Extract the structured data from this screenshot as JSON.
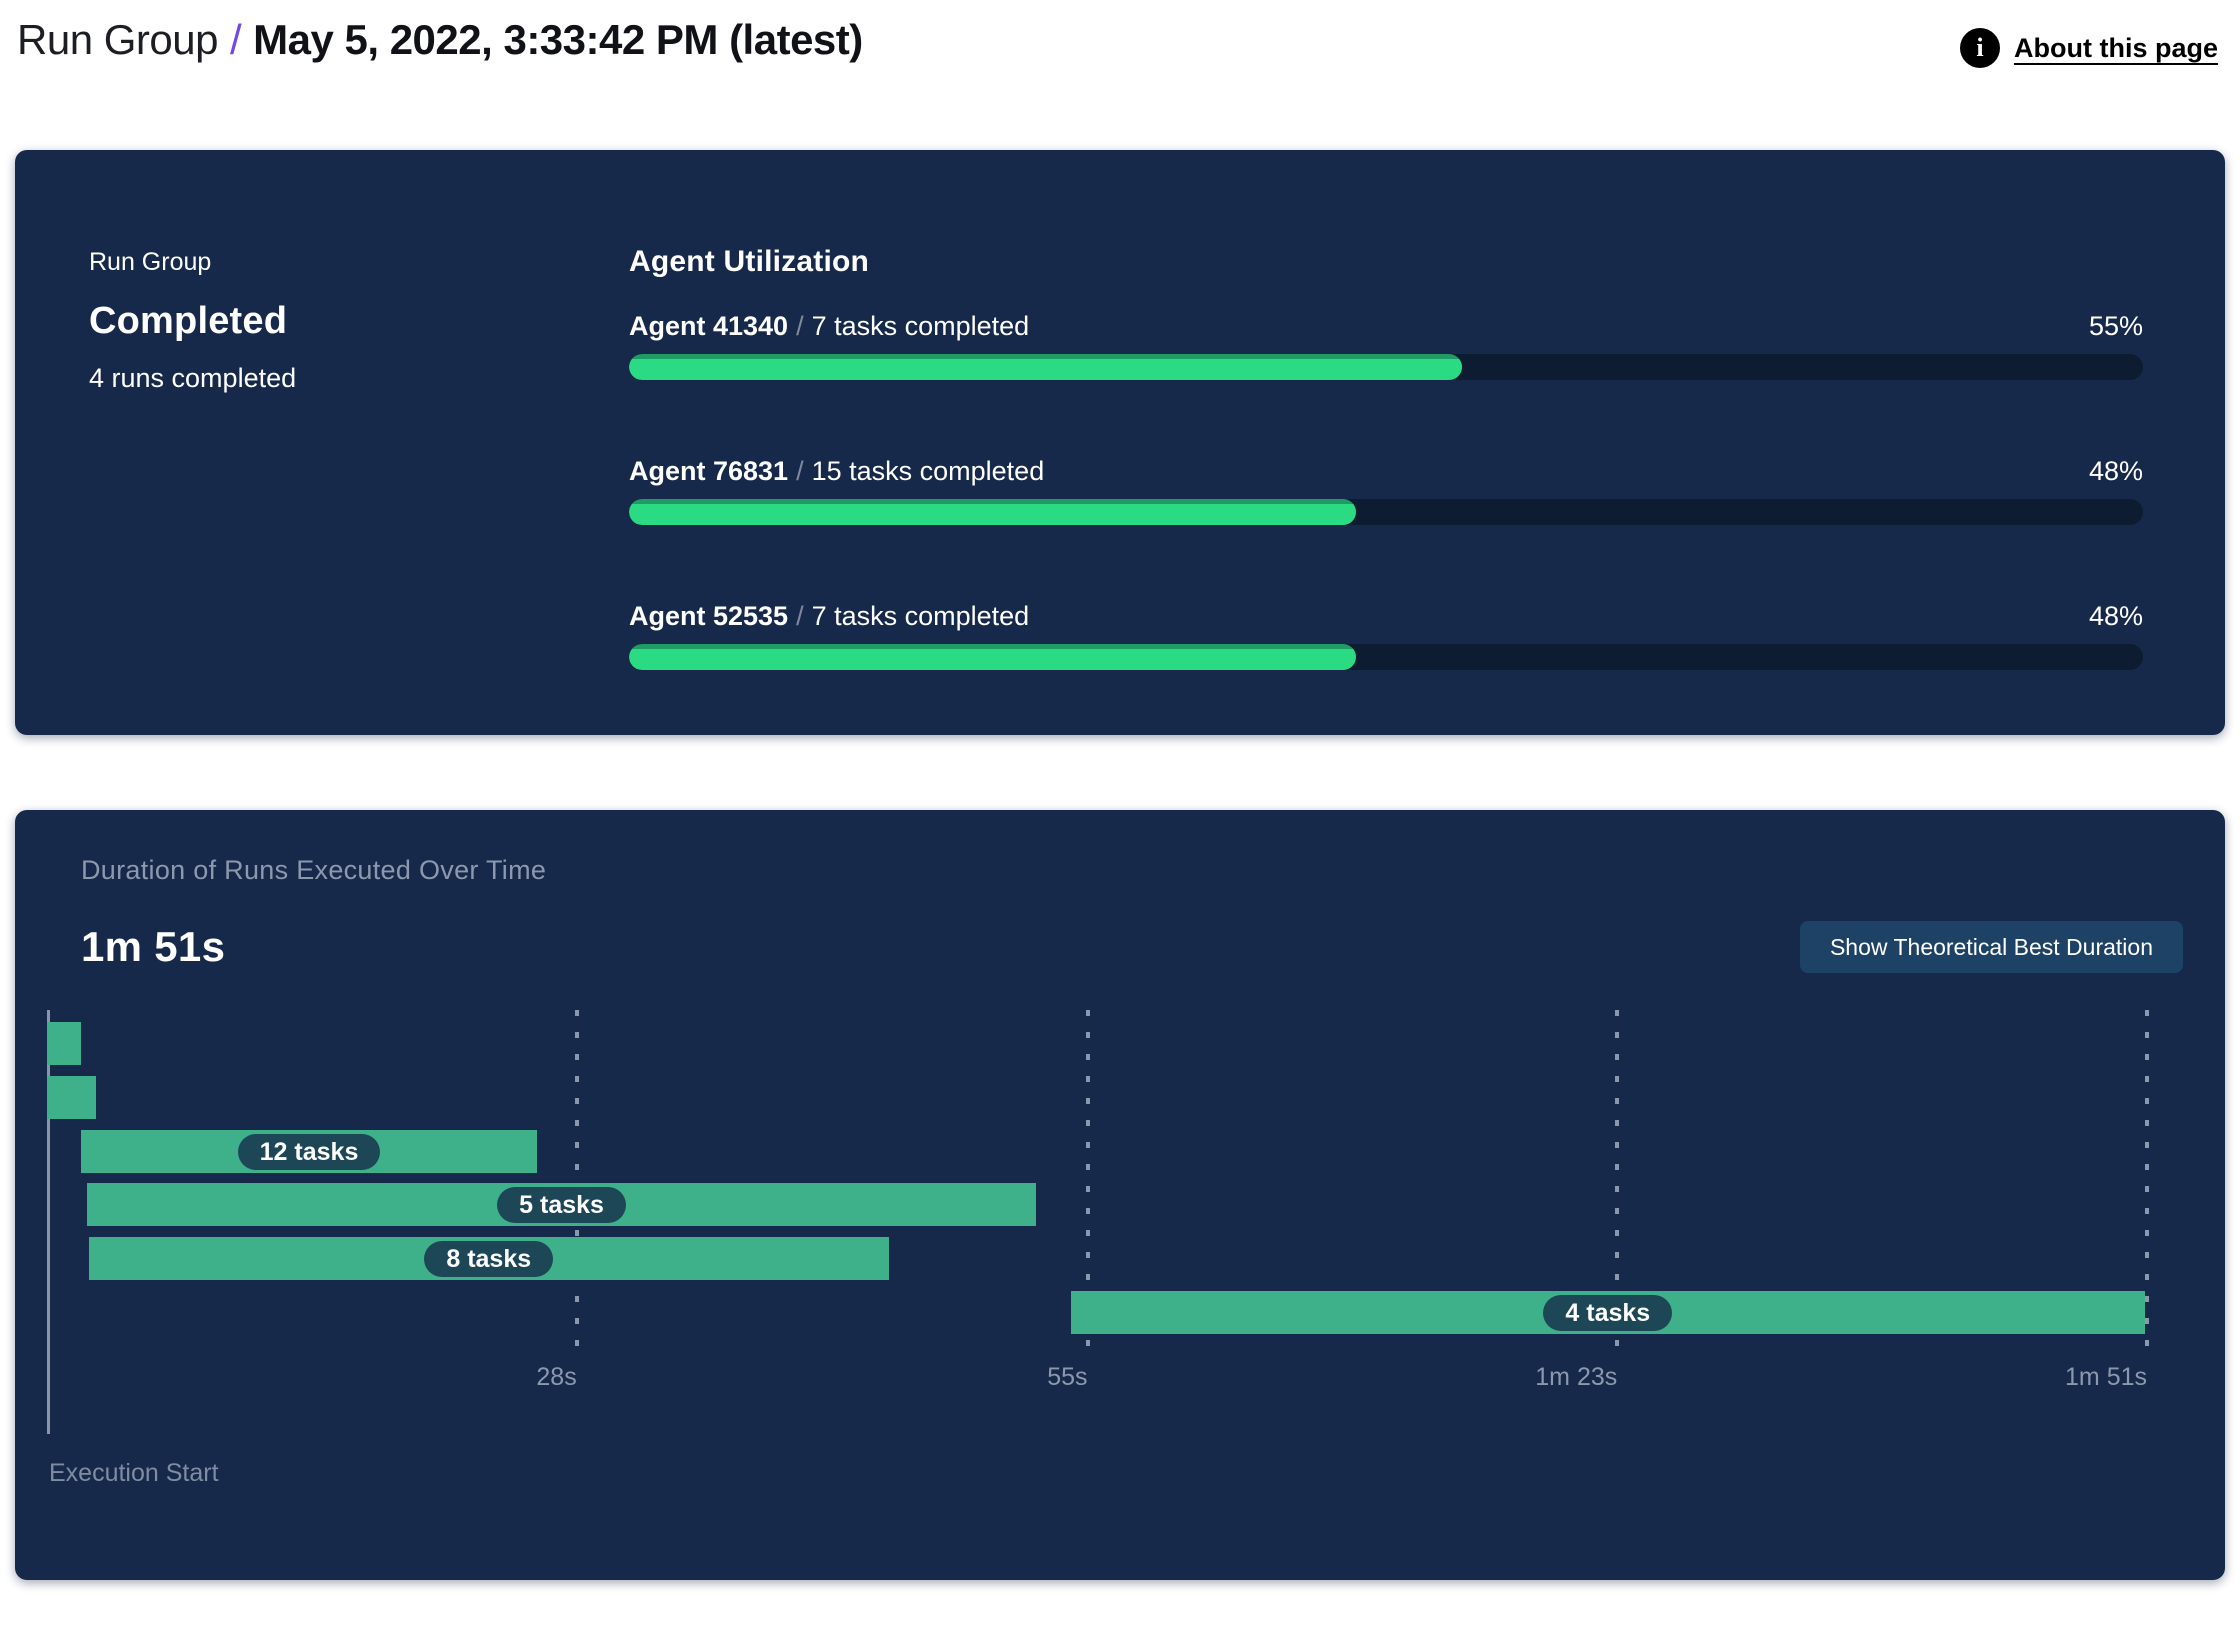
{
  "header": {
    "title_prefix": "Run Group",
    "separator": "/",
    "title_date": "May 5, 2022, 3:33:42 PM (latest)",
    "about_label": "About this page"
  },
  "run_group": {
    "label": "Run Group",
    "status": "Completed",
    "runs": "4 runs completed"
  },
  "agent_utilization": {
    "title": "Agent Utilization",
    "separator": "/",
    "agents": [
      {
        "name": "Agent 41340",
        "tasks": "7 tasks completed",
        "percent": 55,
        "percent_label": "55%"
      },
      {
        "name": "Agent 76831",
        "tasks": "15 tasks completed",
        "percent": 48,
        "percent_label": "48%"
      },
      {
        "name": "Agent 52535",
        "tasks": "7 tasks completed",
        "percent": 48,
        "percent_label": "48%"
      }
    ]
  },
  "duration_panel": {
    "title": "Duration of Runs Executed Over Time",
    "total_duration": "1m 51s",
    "show_best_button": "Show Theoretical Best Duration",
    "execution_start_label": "Execution Start"
  },
  "chart_data": {
    "type": "gantt",
    "title": "Duration of Runs Executed Over Time",
    "total_duration_label": "1m 51s",
    "x_axis": {
      "unit": "seconds",
      "min": 0,
      "max": 111,
      "ticks": [
        {
          "label": "28s",
          "t": 28
        },
        {
          "label": "55s",
          "t": 55
        },
        {
          "label": "1m 23s",
          "t": 83
        },
        {
          "label": "1m 51s",
          "t": 111
        }
      ]
    },
    "grid": "vertical-dashed",
    "bars": [
      {
        "row": 1,
        "start_s": 0,
        "end_s": 1.8,
        "label": null
      },
      {
        "row": 2,
        "start_s": 0,
        "end_s": 2.6,
        "label": null
      },
      {
        "row": 3,
        "start_s": 1.8,
        "end_s": 25.9,
        "label": "12 tasks"
      },
      {
        "row": 4,
        "start_s": 2.1,
        "end_s": 52.3,
        "label": "5 tasks"
      },
      {
        "row": 5,
        "start_s": 2.2,
        "end_s": 44.5,
        "label": "8 tasks"
      },
      {
        "row": 6,
        "start_s": 54.1,
        "end_s": 110.9,
        "label": "4 tasks"
      }
    ]
  },
  "colors": {
    "panel_bg": "#16294a",
    "track_bg": "#0d1c31",
    "progress_green": "#2bdb84",
    "progress_green_edge": "#1f9c63",
    "gantt_green": "#3eb18a",
    "pill_bg": "#1d4657",
    "muted_text": "#8c98ad",
    "button_bg": "#1d4266",
    "header_slash_purple": "#7048e8",
    "axis_line": "#9fa8b8"
  }
}
